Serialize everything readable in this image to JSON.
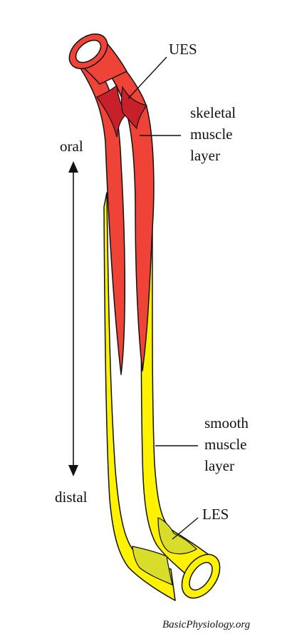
{
  "labels": {
    "ues": "UES",
    "skeletal": [
      "skeletal",
      "muscle",
      "layer"
    ],
    "oral": "oral",
    "distal": "distal",
    "smooth": [
      "smooth",
      "muscle",
      "layer"
    ],
    "les": "LES"
  },
  "credit": "BasicPhysiology.org",
  "colors": {
    "skeletal_muscle": "#ef4337",
    "skeletal_shadow": "#c8202a",
    "smooth_muscle": "#fff200",
    "sphincter_les": "#d8dd2a",
    "outline": "#111111"
  }
}
